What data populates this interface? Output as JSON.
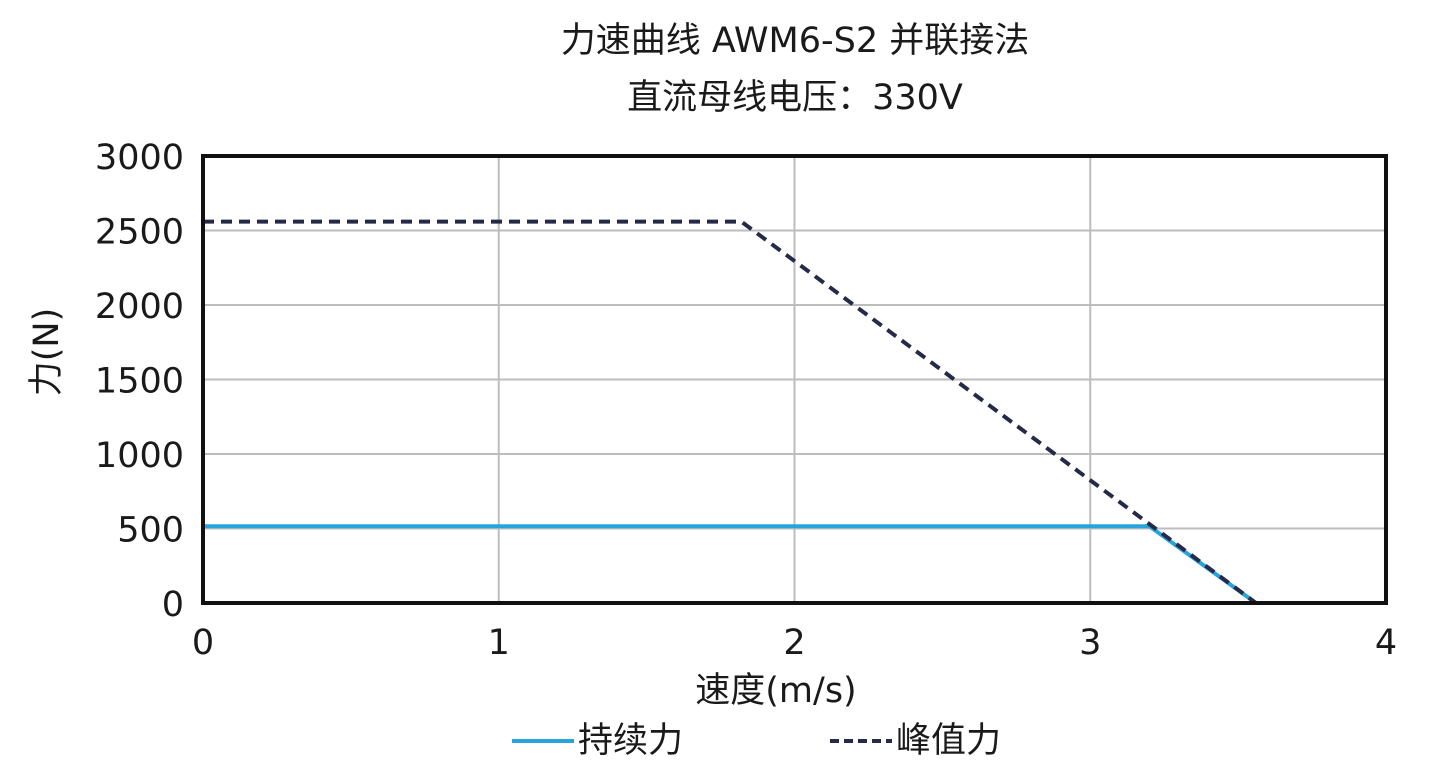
{
  "chart_data": {
    "type": "line",
    "title": "力速曲线 AWM6-S2 并联接法",
    "subtitle": "直流母线电压：330V",
    "xlabel": "速度(m/s)",
    "ylabel": "力(N)",
    "xlim": [
      0,
      4
    ],
    "ylim": [
      0,
      3000
    ],
    "x_ticks": [
      "0",
      "1",
      "2",
      "3",
      "4"
    ],
    "y_ticks": [
      "0",
      "500",
      "1000",
      "1500",
      "2000",
      "2500",
      "3000"
    ],
    "grid": true,
    "legend_position": "bottom",
    "series": [
      {
        "name": "持续力",
        "color": "#29a3dc",
        "style": "solid",
        "x": [
          0,
          3.2,
          3.56
        ],
        "y": [
          515,
          515,
          0
        ]
      },
      {
        "name": "峰值力",
        "color": "#252a48",
        "style": "dashed",
        "x": [
          0,
          1.82,
          3.56
        ],
        "y": [
          2560,
          2560,
          0
        ]
      }
    ]
  }
}
